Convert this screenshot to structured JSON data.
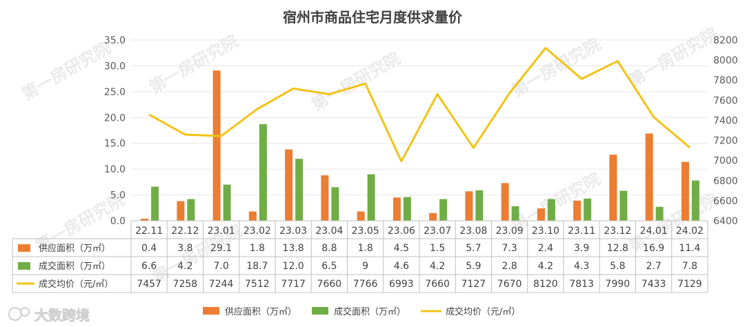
{
  "chart_data": {
    "type": "bar",
    "title": "宿州市商品住宅月度供求量价",
    "categories": [
      "22.11",
      "22.12",
      "23.01",
      "23.02",
      "23.03",
      "23.04",
      "23.05",
      "23.06",
      "23.07",
      "23.08",
      "23.09",
      "23.10",
      "23.11",
      "23.12",
      "24.01",
      "24.02"
    ],
    "series": [
      {
        "name": "供应面积（万㎡）",
        "kind": "bar",
        "axis": "left",
        "color": "#ED7D31",
        "values": [
          0.4,
          3.8,
          29.1,
          1.8,
          13.8,
          8.8,
          1.8,
          4.5,
          1.5,
          5.7,
          7.3,
          2.4,
          3.9,
          12.8,
          16.9,
          11.4
        ],
        "labels": [
          "0.4",
          "3.8",
          "29.1",
          "1.8",
          "13.8",
          "8.8",
          "1.8",
          "4.5",
          "1.5",
          "5.7",
          "7.3",
          "2.4",
          "3.9",
          "12.8",
          "16.9",
          "11.4"
        ]
      },
      {
        "name": "成交面积（万㎡）",
        "kind": "bar",
        "axis": "left",
        "color": "#70AD47",
        "values": [
          6.6,
          4.2,
          7.0,
          18.7,
          12.0,
          6.5,
          9,
          4.6,
          4.2,
          5.9,
          2.8,
          4.2,
          4.3,
          5.8,
          2.7,
          7.8
        ],
        "labels": [
          "6.6",
          "4.2",
          "7.0",
          "18.7",
          "12.0",
          "6.5",
          "9",
          "4.6",
          "4.2",
          "5.9",
          "2.8",
          "4.2",
          "4.3",
          "5.8",
          "2.7",
          "7.8"
        ]
      },
      {
        "name": "成交均价（元/㎡）",
        "kind": "line",
        "axis": "right",
        "color": "#F2C314",
        "values": [
          7457,
          7258,
          7244,
          7512,
          7717,
          7660,
          7766,
          6993,
          7660,
          7127,
          7670,
          8120,
          7813,
          7990,
          7433,
          7129
        ],
        "labels": [
          "7457",
          "7258",
          "7244",
          "7512",
          "7717",
          "7660",
          "7766",
          "6993",
          "7660",
          "7127",
          "7670",
          "8120",
          "7813",
          "7990",
          "7433",
          "7129"
        ]
      }
    ],
    "y_left": {
      "min": 0,
      "max": 35,
      "step": 5,
      "ticks": [
        "0.0",
        "5.0",
        "10.0",
        "15.0",
        "20.0",
        "25.0",
        "30.0",
        "35.0"
      ]
    },
    "y_right": {
      "min": 6400,
      "max": 8200,
      "step": 200,
      "ticks": [
        "6400",
        "6600",
        "6800",
        "7000",
        "7200",
        "7400",
        "7600",
        "7800",
        "8000",
        "8200"
      ]
    },
    "grid": true,
    "legend_position": "bottom",
    "data_table": true
  },
  "watermark": "第一房研究院",
  "logo": "大数跨境"
}
